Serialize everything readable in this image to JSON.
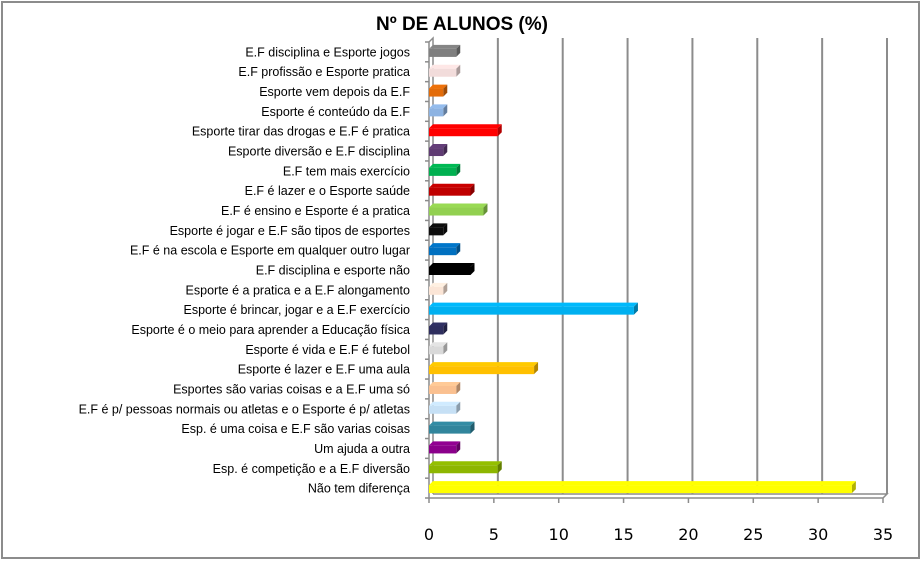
{
  "chart_data": {
    "type": "bar",
    "orientation": "horizontal",
    "style": "3d-clustered",
    "title": "Nº DE ALUNOS (%)",
    "xlabel": "",
    "ylabel": "",
    "xlim": [
      0,
      35
    ],
    "xticks": [
      0,
      5,
      10,
      15,
      20,
      25,
      30,
      35
    ],
    "grid": "vertical major gridlines",
    "legend": "none",
    "categories": [
      "E.F disciplina e Esporte jogos",
      "E.F profissão e Esporte pratica",
      "Esporte vem depois da E.F",
      "Esporte é conteúdo da E.F",
      "Esporte tirar das drogas e E.F é pratica",
      "Esporte diversão e E.F disciplina",
      "E.F tem mais exercício",
      "E.F é lazer e o Esporte saúde",
      "E.F é ensino e Esporte é a pratica",
      "Esporte é jogar e E.F são tipos de esportes",
      "E.F é na escola e Esporte em qualquer outro lugar",
      "E.F disciplina e esporte não",
      "Esporte é a pratica e a E.F alongamento",
      "Esporte é brincar, jogar e a E.F exercício",
      "Esporte é o meio para aprender a Educação física",
      "Esporte é vida e E.F é futebol",
      "Esporte é lazer e E.F uma aula",
      "Esportes são varias coisas e a E.F uma só",
      "E.F é p/ pessoas normais ou atletas e o Esporte é p/ atletas",
      "Esp. é uma coisa e E.F são varias coisas",
      "Um ajuda a outra",
      "Esp. é competição e a E.F diversão",
      "Não tem diferença"
    ],
    "values": [
      2.1,
      2.1,
      1.1,
      1.1,
      5.3,
      1.1,
      2.1,
      3.2,
      4.2,
      1.1,
      2.1,
      3.2,
      1.1,
      15.8,
      1.1,
      1.1,
      8.1,
      2.1,
      2.1,
      3.2,
      2.1,
      5.3,
      32.6
    ],
    "colors": [
      "#7f7f7f",
      "#f2dcdb",
      "#e36c09",
      "#8db3e2",
      "#ff0000",
      "#5f3b73",
      "#00b050",
      "#c00000",
      "#92d050",
      "#0d0d0d",
      "#0070c0",
      "#000000",
      "#fbe5d6",
      "#00b0f0",
      "#2e2e5e",
      "#d9d9d9",
      "#ffc000",
      "#fac090",
      "#c6e0f5",
      "#31859c",
      "#8b008b",
      "#8db600",
      "#ffff00"
    ]
  }
}
